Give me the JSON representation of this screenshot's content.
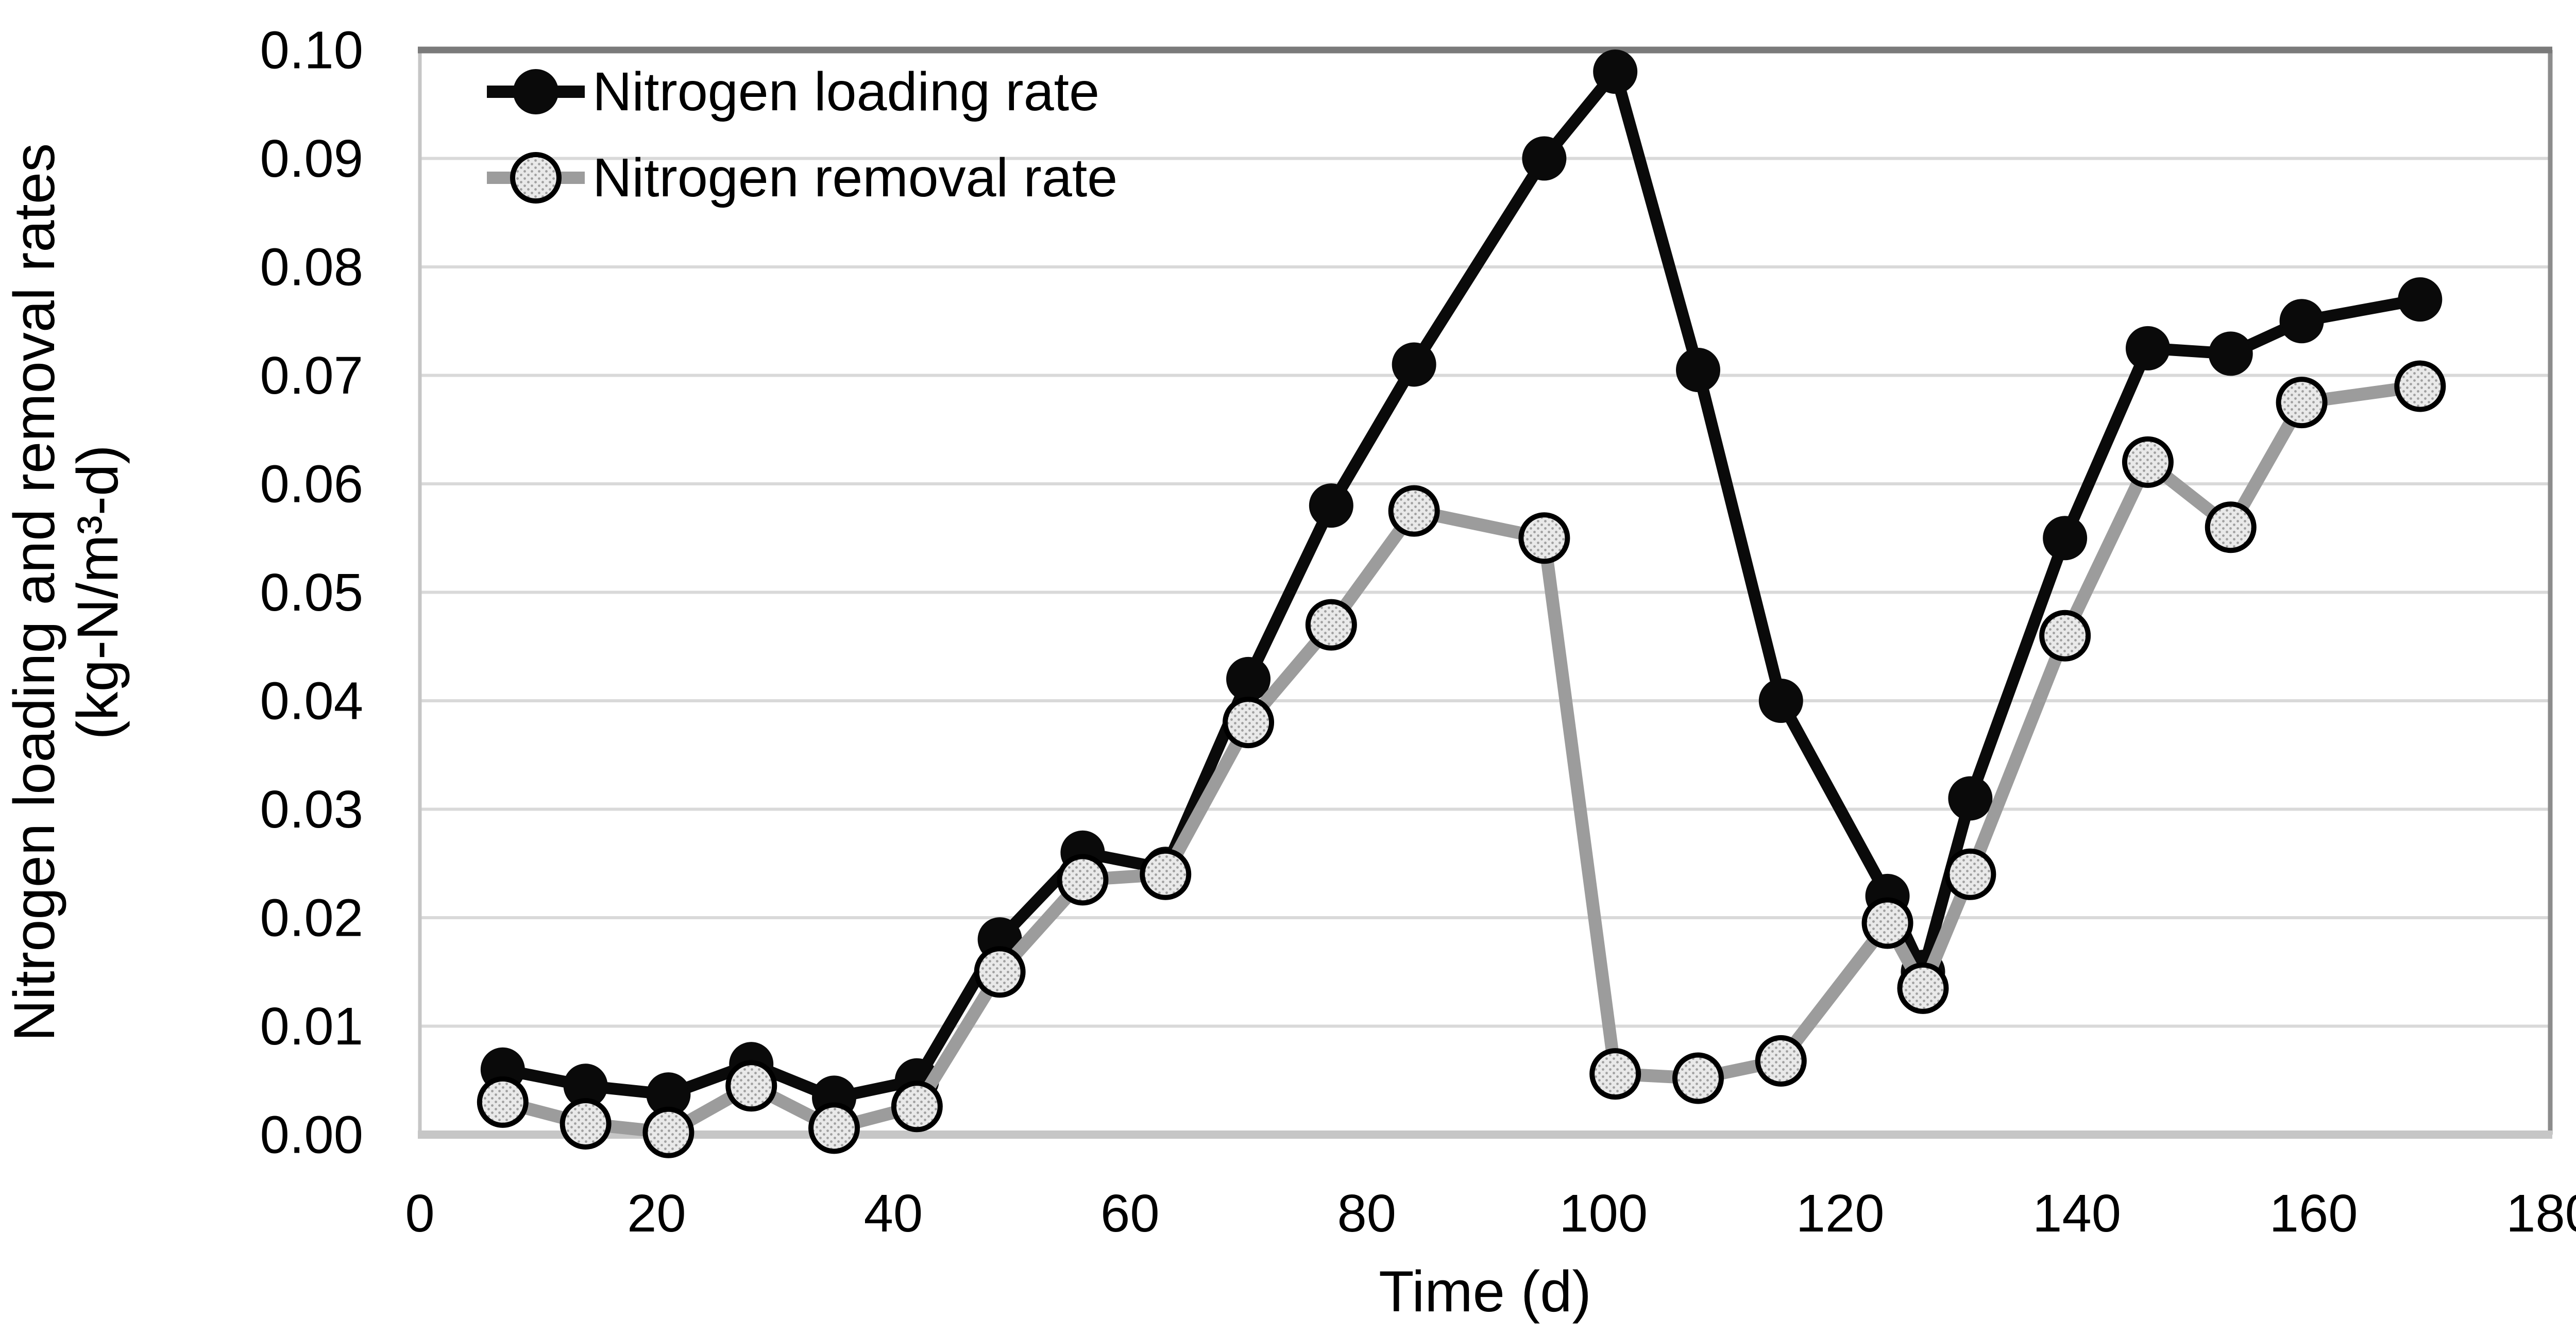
{
  "chart_data": {
    "type": "line",
    "title": "",
    "xlabel": "Time (d)",
    "ylabel_line1": "Nitrogen loading and removal rates",
    "ylabel_line2": "(kg-N/m³-d)",
    "xlim": [
      0,
      180
    ],
    "ylim": [
      0,
      0.1
    ],
    "x_tick_labels": [
      "0",
      "20",
      "40",
      "60",
      "80",
      "100",
      "120",
      "140",
      "160",
      "180"
    ],
    "x_tick_values": [
      0,
      20,
      40,
      60,
      80,
      100,
      120,
      140,
      160,
      180
    ],
    "y_tick_labels": [
      "0.00",
      "0.01",
      "0.02",
      "0.03",
      "0.04",
      "0.05",
      "0.06",
      "0.07",
      "0.08",
      "0.09",
      "0.10"
    ],
    "y_tick_values": [
      0,
      0.01,
      0.02,
      0.03,
      0.04,
      0.05,
      0.06,
      0.07,
      0.08,
      0.09,
      0.1
    ],
    "grid": true,
    "legend_position": "inside-top-left",
    "x": [
      7,
      14,
      21,
      28,
      35,
      42,
      49,
      56,
      63,
      70,
      77,
      84,
      95,
      101,
      108,
      115,
      124,
      127,
      131,
      139,
      146,
      153,
      159,
      169
    ],
    "series": [
      {
        "name": "Nitrogen loading rate",
        "line_color": "#0a0a0a",
        "marker_fill": "#0a0a0a",
        "marker_stroke": "#0a0a0a",
        "values": [
          0.006,
          0.0045,
          0.0037,
          0.0065,
          0.0034,
          0.005,
          0.018,
          0.026,
          0.0245,
          0.042,
          0.058,
          0.071,
          0.09,
          0.098,
          0.0705,
          0.04,
          0.022,
          0.015,
          0.031,
          0.055,
          0.0725,
          0.072,
          0.075,
          0.077
        ]
      },
      {
        "name": "Nitrogen removal rate",
        "line_color": "#9c9c9c",
        "marker_fill": "pattern",
        "marker_stroke": "#000000",
        "values": [
          0.003,
          0.001,
          0.0002,
          0.0045,
          0.0006,
          0.0026,
          0.015,
          0.0235,
          0.024,
          0.038,
          0.047,
          0.0575,
          0.055,
          0.0056,
          0.0052,
          0.0068,
          0.0195,
          0.0135,
          0.024,
          0.046,
          0.062,
          0.056,
          0.0675,
          0.069
        ]
      }
    ],
    "colors": {
      "gridline": "#d9d9d9",
      "axis_bottom": "#c6c6c6",
      "axis_left": "#c6c6c6",
      "border_top": "#7a7a7a",
      "border_right": "#8c8c8c",
      "marker_pattern_bg": "#e9e9e9",
      "marker_pattern_dot": "#a0a0a0",
      "text": "#000000"
    }
  }
}
